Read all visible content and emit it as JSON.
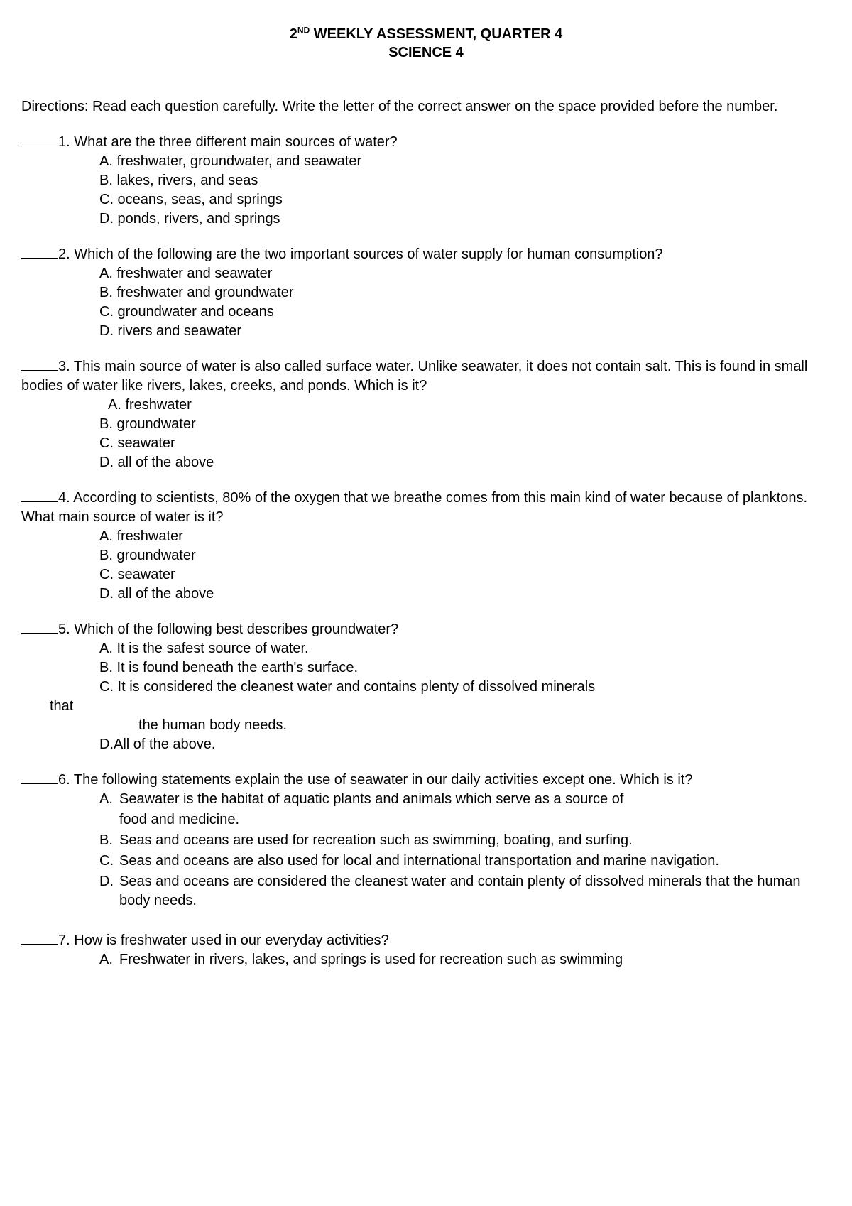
{
  "title": {
    "line1_pre": "2",
    "line1_sup": "ND",
    "line1_post": " WEEKLY ASSESSMENT, QUARTER 4",
    "line2": "SCIENCE 4"
  },
  "directions": "Directions: Read each question carefully. Write the letter of the correct answer on the space provided before the number.",
  "questions": [
    {
      "num": "1.",
      "prompt": "What are the three different main sources of water?",
      "options": [
        "A. freshwater, groundwater, and seawater",
        "B. lakes, rivers, and seas",
        "C. oceans, seas, and springs",
        "D. ponds, rivers, and springs"
      ]
    },
    {
      "num": "2.",
      "prompt": "Which of the following are the two important sources of water supply for human consumption?",
      "options": [
        "A. freshwater and seawater",
        "B. freshwater and groundwater",
        "C. groundwater and oceans",
        "D. rivers and seawater"
      ]
    },
    {
      "num": "3.",
      "prompt": "This main source of water is also called surface water. Unlike seawater, it does not contain salt. This is found in small bodies of water like rivers, lakes, creeks, and ponds. Which is it?",
      "optAindent": true,
      "options": [
        "A. freshwater",
        "B. groundwater",
        "C. seawater",
        "D. all of the above"
      ]
    },
    {
      "num": "4.",
      "prompt": "According to scientists, 80% of the oxygen that we breathe comes from this main kind of water because of planktons. What main source of water is it?",
      "options": [
        "A. freshwater",
        "B. groundwater",
        "C. seawater",
        "D. all of the above"
      ]
    }
  ],
  "q5": {
    "num": "5.",
    "prompt": "Which of the following best describes groundwater?",
    "a": "A. It is the safest source of water.",
    "b": "B. It is found beneath the earth's surface.",
    "c": "C. It is considered the cleanest water and contains plenty of dissolved minerals",
    "that": "that",
    "cont": "the human body needs.",
    "d": "D.All of the above."
  },
  "q6": {
    "num": "6.",
    "prompt": "The following statements explain the use of seawater in our daily activities except one. Which is it?",
    "opts": [
      {
        "l": "A.",
        "t": "Seawater is the habitat of aquatic plants and animals which serve as a source of",
        "t2": "food and medicine."
      },
      {
        "l": "B.",
        "t": "Seas and oceans are used for recreation such as swimming, boating, and surfing."
      },
      {
        "l": "C.",
        "t": "Seas and oceans are also used for local and international transportation and marine navigation."
      },
      {
        "l": "D.",
        "t": "Seas and oceans are considered the cleanest water and contain plenty of dissolved minerals that the human body needs."
      }
    ]
  },
  "q7": {
    "num": "7.",
    "prompt": "How is freshwater used in our everyday activities?",
    "opts": [
      {
        "l": "A.",
        "t": "Freshwater in rivers, lakes, and springs is used for recreation such as swimming"
      }
    ]
  }
}
